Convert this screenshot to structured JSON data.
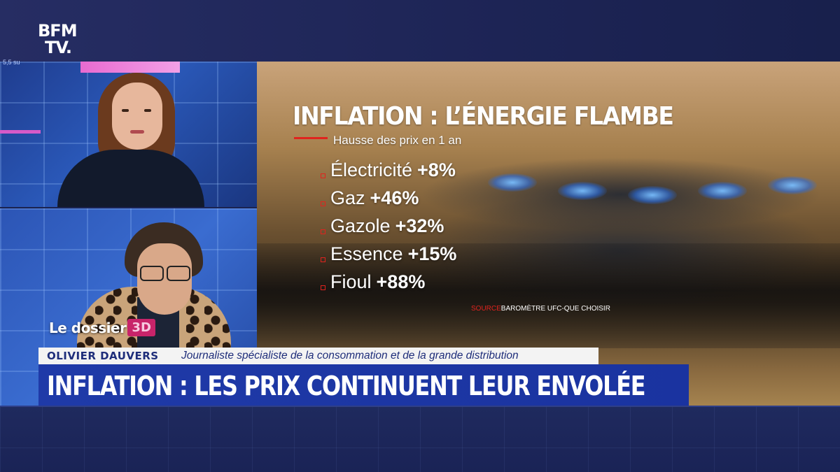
{
  "channel": {
    "logo_line1": "BFM",
    "logo_line2": "TV."
  },
  "studio": {
    "ticker": "5,5 su"
  },
  "graphic": {
    "title": "INFLATION : L’ÉNERGIE FLAMBE",
    "subtitle": "Hausse des prix en 1 an",
    "items": [
      {
        "name": "Électricité",
        "value": "+8%"
      },
      {
        "name": "Gaz",
        "value": "+46%"
      },
      {
        "name": "Gazole",
        "value": "+32%"
      },
      {
        "name": "Essence",
        "value": "+15%"
      },
      {
        "name": "Fioul",
        "value": "+88%"
      }
    ],
    "source_label": "SOURCE",
    "source_text": "BAROMÈTRE UFC-QUE CHOISIR"
  },
  "lower_third": {
    "segment": "Le dossier",
    "segment_badge": "3D",
    "person_name": "OLIVIER DAUVERS",
    "person_role": "Journaliste spécialiste de la consommation et de la grande distribution",
    "headline": "INFLATION : LES PRIX CONTINUENT LEUR ENVOLÉE"
  },
  "colors": {
    "accent_red": "#e0231e",
    "headline_blue": "#1f3aa8",
    "badge_pink": "#c8246a",
    "name_text": "#1e2d7a"
  }
}
